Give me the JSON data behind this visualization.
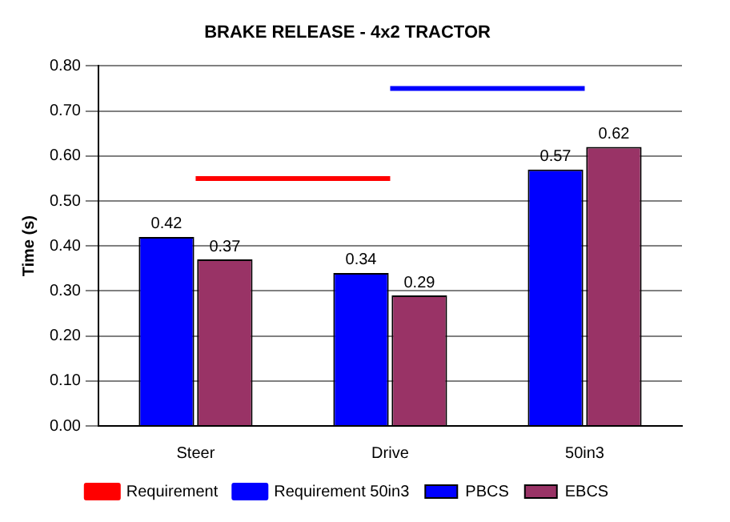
{
  "chart_data": {
    "type": "bar",
    "title": "BRAKE RELEASE - 4x2 TRACTOR",
    "ylabel": "Time (s)",
    "categories": [
      "Steer",
      "Drive",
      "50in3"
    ],
    "series": [
      {
        "name": "PBCS",
        "color": "#0000ff",
        "values": [
          0.42,
          0.34,
          0.57
        ],
        "value_labels": [
          "0.42",
          "0.34",
          "0.57"
        ]
      },
      {
        "name": "EBCS",
        "color": "#993366",
        "values": [
          0.37,
          0.29,
          0.62
        ],
        "value_labels": [
          "0.37",
          "0.29",
          "0.62"
        ]
      },
      {
        "name": "Requirement",
        "type": "line",
        "color": "#ff0000",
        "values": [
          0.55,
          0.55,
          null
        ]
      },
      {
        "name": "Requirement 50in3",
        "type": "line",
        "color": "#0000ff",
        "values": [
          null,
          0.75,
          0.75
        ]
      }
    ],
    "ylim": [
      0,
      0.8
    ],
    "yticks": [
      {
        "value": 0,
        "label": "0.00"
      },
      {
        "value": 0.1,
        "label": "0.10"
      },
      {
        "value": 0.2,
        "label": "0.20"
      },
      {
        "value": 0.3,
        "label": "0.30"
      },
      {
        "value": 0.4,
        "label": "0.40"
      },
      {
        "value": 0.5,
        "label": "0.50"
      },
      {
        "value": 0.6,
        "label": "0.60"
      },
      {
        "value": 0.7,
        "label": "0.70"
      },
      {
        "value": 0.8,
        "label": "0.80"
      }
    ],
    "grid": "y",
    "legend": "bottom",
    "marker": "none",
    "line_style": "solid"
  }
}
